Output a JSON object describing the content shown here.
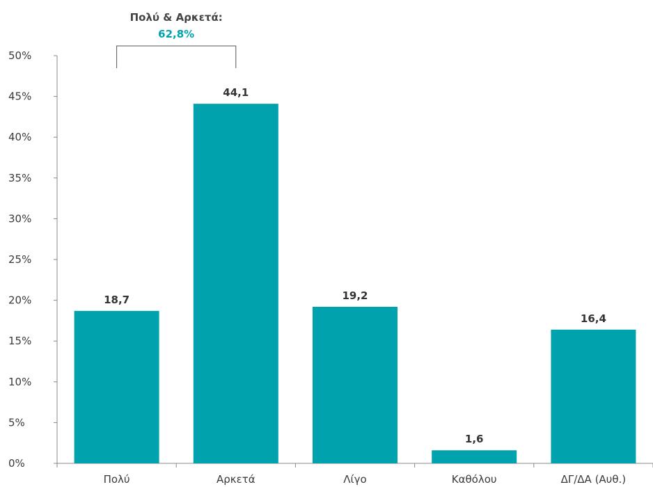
{
  "chart_data": {
    "type": "bar",
    "categories": [
      "Πολύ",
      "Αρκετά",
      "Λίγο",
      "Καθόλου",
      "ΔΓ/ΔΑ (Αυθ.)"
    ],
    "values": [
      18.7,
      44.1,
      19.2,
      1.6,
      16.4
    ],
    "value_labels": [
      "18,7",
      "44,1",
      "19,2",
      "1,6",
      "16,4"
    ],
    "title": "",
    "xlabel": "",
    "ylabel": "",
    "ylim": [
      0,
      50
    ],
    "yticks": [
      0,
      5,
      10,
      15,
      20,
      25,
      30,
      35,
      40,
      45,
      50
    ],
    "ytick_labels": [
      "0%",
      "5%",
      "10%",
      "15%",
      "20%",
      "25%",
      "30%",
      "35%",
      "40%",
      "45%",
      "50%"
    ],
    "grid": false,
    "legend": "none",
    "bar_color": "#00A3AD",
    "annotation": {
      "label": "Πολύ & Αρκετά:",
      "value": "62,8%",
      "value_color": "#00A3AD",
      "spans_categories": [
        "Πολύ",
        "Αρκετά"
      ]
    }
  }
}
